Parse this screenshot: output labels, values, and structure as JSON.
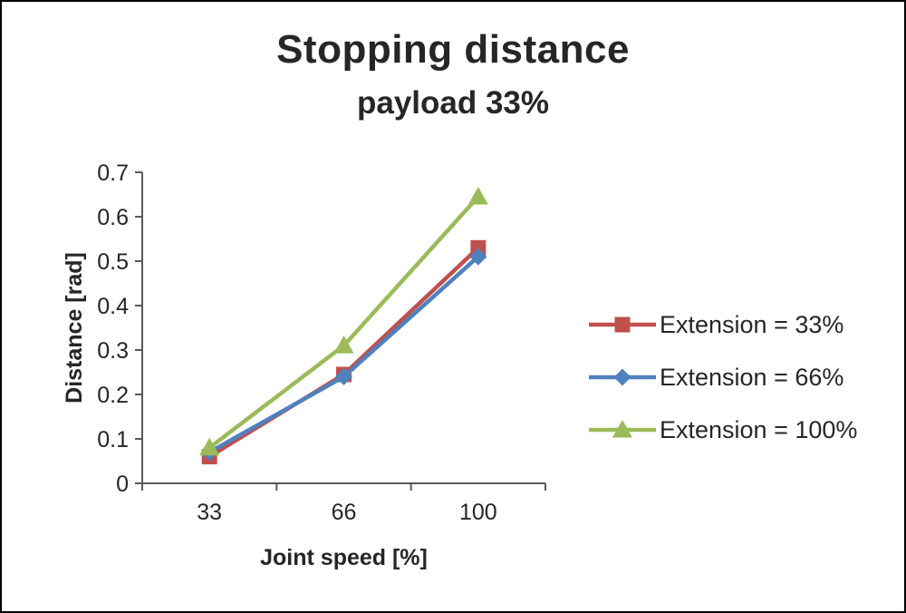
{
  "title": "Stopping distance",
  "subtitle": "payload 33%",
  "chart_data": {
    "type": "line",
    "title": "Stopping distance",
    "subtitle": "payload 33%",
    "categories": [
      "33",
      "66",
      "100"
    ],
    "xlabel": "Joint speed [%]",
    "ylabel": "Distance [rad]",
    "ylim": [
      0,
      0.7
    ],
    "yticks": [
      0,
      0.1,
      0.2,
      0.3,
      0.4,
      0.5,
      0.6,
      0.7
    ],
    "grid": false,
    "legend_position": "right",
    "series": [
      {
        "name": "Extension = 33%",
        "marker": "square",
        "color": "#C0504D",
        "values": [
          0.06,
          0.245,
          0.53
        ]
      },
      {
        "name": "Extension = 66%",
        "marker": "diamond",
        "color": "#4F81BD",
        "values": [
          0.07,
          0.24,
          0.51
        ]
      },
      {
        "name": "Extension = 100%",
        "marker": "triangle",
        "color": "#9BBB59",
        "values": [
          0.08,
          0.31,
          0.645
        ]
      }
    ],
    "colors": {
      "axis": "#595959",
      "text": "#262626"
    }
  }
}
